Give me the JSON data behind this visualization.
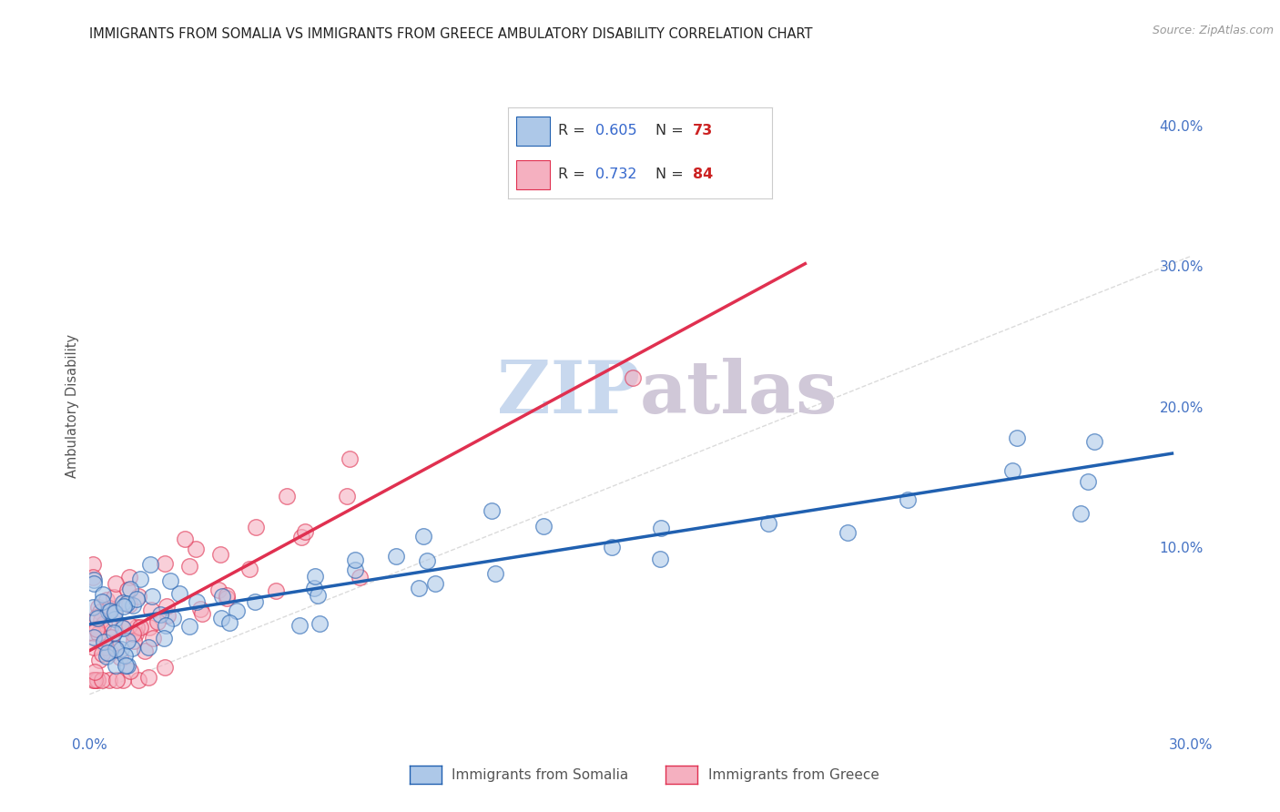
{
  "title": "IMMIGRANTS FROM SOMALIA VS IMMIGRANTS FROM GREECE AMBULATORY DISABILITY CORRELATION CHART",
  "source": "Source: ZipAtlas.com",
  "ylabel": "Ambulatory Disability",
  "xlim": [
    0.0,
    0.3
  ],
  "ylim": [
    -0.025,
    0.42
  ],
  "x_ticks": [
    0.0,
    0.05,
    0.1,
    0.15,
    0.2,
    0.25,
    0.3
  ],
  "y_ticks_right": [
    0.0,
    0.1,
    0.2,
    0.3,
    0.4
  ],
  "y_tick_labels_right": [
    "",
    "10.0%",
    "20.0%",
    "30.0%",
    "40.0%"
  ],
  "somalia_R": 0.605,
  "somalia_N": 73,
  "greece_R": 0.732,
  "greece_N": 84,
  "somalia_color": "#adc8e8",
  "greece_color": "#f5b0c0",
  "somalia_line_color": "#2060b0",
  "greece_line_color": "#e03050",
  "diagonal_color": "#cccccc",
  "background_color": "#ffffff",
  "grid_color": "#e8e8e8",
  "title_color": "#222222",
  "watermark_zip_color": "#c8d8ee",
  "watermark_atlas_color": "#d0c8d8",
  "legend_R_color": "#3366cc",
  "legend_N_color": "#cc2222",
  "somalia_line_x0": 0.0,
  "somalia_line_x1": 0.295,
  "somalia_line_y0": 0.048,
  "somalia_line_y1": 0.165,
  "greece_line_x0": 0.0,
  "greece_line_x1": 0.195,
  "greece_line_y0": 0.03,
  "greece_line_y1": 0.295
}
